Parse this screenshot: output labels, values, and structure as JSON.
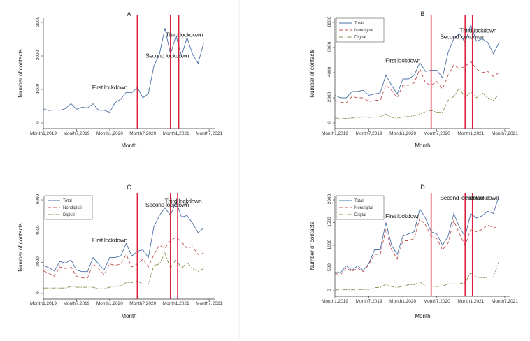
{
  "figure": {
    "background": "#ffffff"
  },
  "chart_data": [
    {
      "id": "A",
      "type": "line",
      "title": "A",
      "xlabel": "Month",
      "ylabel": "Number of contacts",
      "ylim": [
        0,
        3000
      ],
      "yticks": [
        0,
        1000,
        2000,
        3000
      ],
      "ytick_labels": [
        "0",
        "1000",
        "2000",
        "3000"
      ],
      "xtick_indices": [
        0,
        6,
        12,
        18,
        24,
        30
      ],
      "xtick_labels": [
        "Month1,2019",
        "Month7,2019",
        "Month1,2020",
        "Month7,2020",
        "Month1,2021",
        "Month7,2021"
      ],
      "x_range": [
        0,
        31
      ],
      "show_legend": false,
      "series": [
        {
          "name": "Total",
          "color": "#4a6fa5",
          "dash": "solid",
          "values": [
            420,
            370,
            390,
            380,
            430,
            580,
            410,
            470,
            450,
            570,
            380,
            380,
            320,
            610,
            710,
            910,
            900,
            1060,
            750,
            870,
            1700,
            2050,
            2830,
            2050,
            2600,
            2000,
            2550,
            2050,
            1780,
            2380
          ]
        }
      ],
      "vlines": [
        {
          "x": 17
        },
        {
          "x": 23
        },
        {
          "x": 24.5
        }
      ],
      "line_color": "#d9233e",
      "annotations": [
        {
          "text": "First lockdown",
          "x": 12,
          "y": 1000
        },
        {
          "text": "Second lockdown",
          "x": 22.4,
          "y": 1950
        },
        {
          "text": "Third lockdown",
          "x": 25.5,
          "y": 2570
        }
      ]
    },
    {
      "id": "B",
      "type": "line",
      "title": "B",
      "xlabel": "Month",
      "ylabel": "Number of contacts",
      "ylim": [
        0,
        8000
      ],
      "yticks": [
        0,
        2000,
        4000,
        6000,
        8000
      ],
      "ytick_labels": [
        "0",
        "2000",
        "4000",
        "6000",
        "8000"
      ],
      "xtick_indices": [
        0,
        6,
        12,
        18,
        24,
        30
      ],
      "xtick_labels": [
        "Month1,2019",
        "Month7,2019",
        "Month1,2020",
        "Month7,2020",
        "Month1,2021",
        "Month7,2021"
      ],
      "x_range": [
        0,
        31
      ],
      "show_legend": true,
      "legend": [
        "Total",
        "Nondigital",
        "Digital"
      ],
      "series": [
        {
          "name": "Total",
          "color": "#4a6fa5",
          "dash": "solid",
          "values": [
            2200,
            2000,
            2000,
            2500,
            2500,
            2600,
            2200,
            2300,
            2400,
            3800,
            3000,
            2300,
            3500,
            3500,
            3800,
            4800,
            4100,
            4200,
            4200,
            3600,
            5600,
            6700,
            7100,
            6400,
            7800,
            6500,
            6700,
            6400,
            5500,
            6400
          ]
        },
        {
          "name": "Nondigital",
          "color": "#c0504d",
          "dash": "5,3",
          "values": [
            1800,
            1650,
            1600,
            2100,
            2000,
            2000,
            1700,
            1800,
            1800,
            3000,
            2600,
            2000,
            3000,
            3000,
            3200,
            4300,
            3200,
            3000,
            3300,
            2700,
            3800,
            4600,
            4300,
            4500,
            4900,
            4300,
            4000,
            4100,
            3700,
            4000
          ]
        },
        {
          "name": "Digital",
          "color": "#8a8a4a",
          "dash": "6,2,1.5,2",
          "values": [
            400,
            350,
            350,
            400,
            400,
            500,
            450,
            450,
            500,
            700,
            450,
            380,
            500,
            500,
            600,
            700,
            900,
            1000,
            850,
            850,
            1800,
            2100,
            2800,
            2000,
            2500,
            2000,
            2400,
            2000,
            1800,
            2300
          ]
        }
      ],
      "vlines": [
        {
          "x": 17
        },
        {
          "x": 23
        },
        {
          "x": 24.3
        }
      ],
      "line_color": "#d9233e",
      "annotations": [
        {
          "text": "First lockdown",
          "x": 12,
          "y": 4800
        },
        {
          "text": "Second lockdown",
          "x": 22.4,
          "y": 6700
        },
        {
          "text": "Third lockdown",
          "x": 25.3,
          "y": 7200
        }
      ]
    },
    {
      "id": "C",
      "type": "line",
      "title": "C",
      "xlabel": "Month",
      "ylabel": "Number of contacts",
      "ylim": [
        0,
        6000
      ],
      "yticks": [
        0,
        2000,
        4000,
        6000
      ],
      "ytick_labels": [
        "0",
        "2000",
        "4000",
        "6000"
      ],
      "xtick_indices": [
        0,
        6,
        12,
        18,
        24,
        30
      ],
      "xtick_labels": [
        "Month1,2019",
        "Month7,2019",
        "Month1,2020",
        "Month7,2020",
        "Month1,2021",
        "Month7,2021"
      ],
      "x_range": [
        0,
        31
      ],
      "show_legend": true,
      "legend": [
        "Total",
        "Nondigital",
        "Digital"
      ],
      "series": [
        {
          "name": "Total",
          "color": "#4a6fa5",
          "dash": "solid",
          "values": [
            1800,
            1650,
            1450,
            2050,
            1950,
            2150,
            1500,
            1400,
            1400,
            2300,
            1900,
            1500,
            2300,
            2300,
            2400,
            3200,
            2400,
            2700,
            2800,
            2300,
            4300,
            5000,
            5500,
            5000,
            5900,
            4900,
            5000,
            4500,
            3900,
            4200
          ]
        },
        {
          "name": "Nondigital",
          "color": "#c0504d",
          "dash": "5,3",
          "values": [
            1450,
            1300,
            1100,
            1700,
            1600,
            1700,
            1100,
            1000,
            1000,
            1900,
            1600,
            1200,
            1900,
            1800,
            1900,
            2500,
            1700,
            1900,
            2200,
            1700,
            2500,
            3100,
            2900,
            3400,
            3600,
            3300,
            2900,
            3000,
            2500,
            2600
          ]
        },
        {
          "name": "Digital",
          "color": "#8a8a4a",
          "dash": "6,2,1.5,2",
          "values": [
            350,
            350,
            350,
            350,
            350,
            450,
            400,
            400,
            400,
            400,
            300,
            300,
            400,
            450,
            500,
            700,
            700,
            800,
            600,
            600,
            1800,
            1900,
            2600,
            1600,
            2200,
            1600,
            2000,
            1600,
            1400,
            1600
          ]
        }
      ],
      "vlines": [
        {
          "x": 17
        },
        {
          "x": 23
        },
        {
          "x": 24.3
        }
      ],
      "line_color": "#d9233e",
      "annotations": [
        {
          "text": "First lockdown",
          "x": 12,
          "y": 3300
        },
        {
          "text": "Second lockdown",
          "x": 22.4,
          "y": 5550
        },
        {
          "text": "Third lockdown",
          "x": 25.3,
          "y": 5800
        }
      ]
    },
    {
      "id": "D",
      "type": "line",
      "title": "D",
      "xlabel": "Month",
      "ylabel": "Number of contacts",
      "ylim": [
        0,
        2000
      ],
      "yticks": [
        0,
        500,
        1000,
        1500,
        2000
      ],
      "ytick_labels": [
        "0",
        "500",
        "1000",
        "1500",
        "2000"
      ],
      "xtick_indices": [
        0,
        6,
        12,
        18,
        24,
        30
      ],
      "xtick_labels": [
        "Month1,2019",
        "Month7,2019",
        "Month1,2020",
        "Month7,2020",
        "Month1,2021",
        "Month7,2021"
      ],
      "x_range": [
        0,
        31
      ],
      "show_legend": true,
      "legend": [
        "Total",
        "Nondigital",
        "Digital"
      ],
      "series": [
        {
          "name": "Total",
          "color": "#4a6fa5",
          "dash": "solid",
          "values": [
            400,
            400,
            550,
            450,
            550,
            450,
            600,
            900,
            900,
            1500,
            1000,
            800,
            1200,
            1250,
            1300,
            1800,
            1600,
            1300,
            1250,
            1000,
            1200,
            1700,
            1400,
            1200,
            1700,
            1600,
            1650,
            1750,
            1700,
            2100
          ]
        },
        {
          "name": "Nondigital",
          "color": "#c0504d",
          "dash": "5,3",
          "values": [
            380,
            350,
            500,
            420,
            500,
            420,
            580,
            800,
            800,
            1350,
            900,
            700,
            1100,
            1100,
            1150,
            1600,
            1450,
            1200,
            1150,
            900,
            1050,
            1550,
            1250,
            1000,
            1350,
            1300,
            1350,
            1450,
            1380,
            1430
          ]
        },
        {
          "name": "Digital",
          "color": "#8a8a4a",
          "dash": "6,2,1.5,2",
          "values": [
            20,
            20,
            20,
            20,
            20,
            30,
            30,
            70,
            70,
            140,
            90,
            70,
            100,
            130,
            130,
            200,
            100,
            100,
            90,
            100,
            150,
            150,
            150,
            180,
            400,
            300,
            280,
            300,
            300,
            650
          ]
        }
      ],
      "vlines": [
        {
          "x": 17
        },
        {
          "x": 23
        },
        {
          "x": 24.3
        }
      ],
      "line_color": "#d9233e",
      "annotations": [
        {
          "text": "First lockdown",
          "x": 12,
          "y": 1600
        },
        {
          "text": "Second lockdown",
          "x": 22.4,
          "y": 2000
        },
        {
          "text": "Third lockdown",
          "x": 25.7,
          "y": 2000
        }
      ]
    }
  ]
}
